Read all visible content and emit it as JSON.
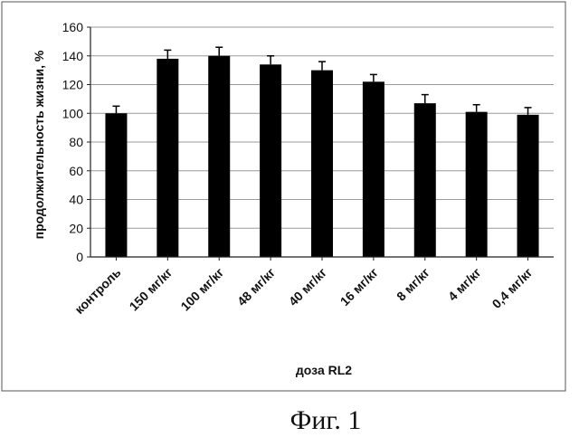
{
  "chart_data": {
    "type": "bar",
    "categories": [
      "контроль",
      "150 мг/кг",
      "100 мг/кг",
      "48 мг/кг",
      "40 мг/кг",
      "16 мг/кг",
      "8 мг/кг",
      "4 мг/кг",
      "0,4 мг/кг"
    ],
    "values": [
      100,
      138,
      140,
      134,
      130,
      122,
      107,
      101,
      99
    ],
    "errors": [
      5,
      6,
      6,
      6,
      6,
      5,
      6,
      5,
      5
    ],
    "xlabel": "доза RL2",
    "ylabel": "продолжительность жизни, %",
    "ylim": [
      0,
      160
    ],
    "yticks": [
      0,
      20,
      40,
      60,
      80,
      100,
      120,
      140,
      160
    ],
    "grid": true,
    "bar_color": "#000000"
  },
  "caption": "Фиг. 1"
}
